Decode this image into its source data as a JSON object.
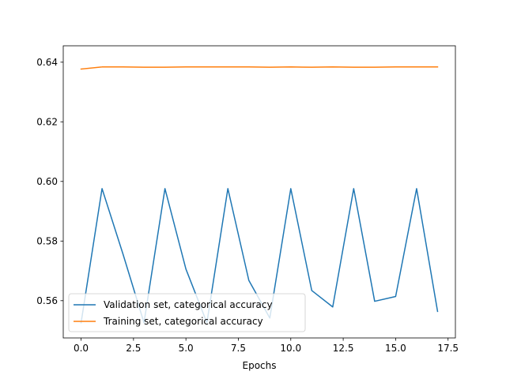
{
  "chart_data": {
    "type": "line",
    "title": "",
    "xlabel": "Epochs",
    "ylabel": "",
    "xlim": [
      -0.85,
      17.85
    ],
    "ylim": [
      0.5475,
      0.6455
    ],
    "xticks": [
      0.0,
      2.5,
      5.0,
      7.5,
      10.0,
      12.5,
      15.0,
      17.5
    ],
    "xtick_labels": [
      "0.0",
      "2.5",
      "5.0",
      "7.5",
      "10.0",
      "12.5",
      "15.0",
      "17.5"
    ],
    "yticks": [
      0.56,
      0.58,
      0.6,
      0.62,
      0.64
    ],
    "ytick_labels": [
      "0.56",
      "0.58",
      "0.60",
      "0.62",
      "0.64"
    ],
    "grid": false,
    "legend_position": "lower-left",
    "x": [
      0,
      1,
      2,
      3,
      4,
      5,
      6,
      7,
      8,
      9,
      10,
      11,
      12,
      13,
      14,
      15,
      16,
      17
    ],
    "series": [
      {
        "name": "Validation set, categorical accuracy",
        "color": "#1f77b4",
        "values": [
          0.5526,
          0.5976,
          0.5756,
          0.5526,
          0.5976,
          0.5706,
          0.5526,
          0.5976,
          0.5668,
          0.5542,
          0.5976,
          0.5634,
          0.5579,
          0.5976,
          0.5598,
          0.5614,
          0.5976,
          0.5564
        ]
      },
      {
        "name": "Training set, categorical accuracy",
        "color": "#ff7f0e",
        "values": [
          0.6377,
          0.6384,
          0.6384,
          0.6383,
          0.6383,
          0.6384,
          0.6384,
          0.6384,
          0.6384,
          0.6383,
          0.6384,
          0.6383,
          0.6384,
          0.6383,
          0.6383,
          0.6384,
          0.6384,
          0.6384
        ]
      }
    ]
  }
}
